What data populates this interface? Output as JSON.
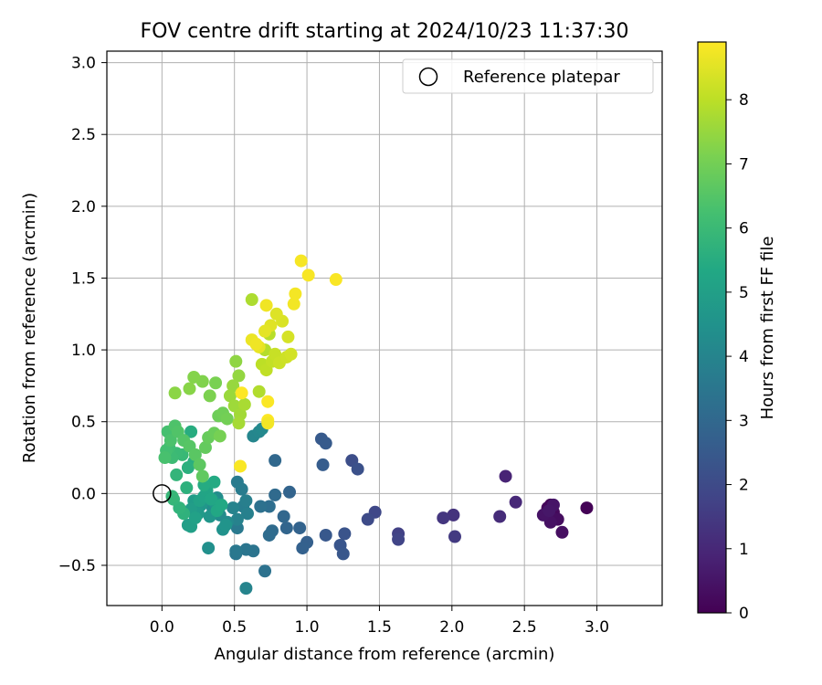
{
  "chart_data": {
    "type": "scatter",
    "title": "FOV centre drift starting at 2024/10/23 11:37:30",
    "xlabel": "Angular distance from reference (arcmin)",
    "ylabel": "Rotation from reference (arcmin)",
    "xlim": [
      -0.38,
      3.45
    ],
    "ylim": [
      -0.78,
      3.08
    ],
    "xticks": [
      "0.0",
      "0.5",
      "1.0",
      "1.5",
      "2.0",
      "2.5",
      "3.0"
    ],
    "xtick_values": [
      0,
      0.5,
      1,
      1.5,
      2,
      2.5,
      3
    ],
    "yticks": [
      "−0.5",
      "0.0",
      "0.5",
      "1.0",
      "1.5",
      "2.0",
      "2.5",
      "3.0"
    ],
    "ytick_values": [
      -0.5,
      0,
      0.5,
      1,
      1.5,
      2,
      2.5,
      3
    ],
    "grid": true,
    "legend": {
      "placement": "top-right",
      "label": "Reference platepar"
    },
    "reference_point": {
      "x": 0.0,
      "y": 0.0
    },
    "colorbar": {
      "label": "Hours from first FF file",
      "colormap": "viridis",
      "range": [
        0,
        8.9
      ],
      "ticks": [
        "0",
        "1",
        "2",
        "3",
        "4",
        "5",
        "6",
        "7",
        "8"
      ],
      "tick_values": [
        0,
        1,
        2,
        3,
        4,
        5,
        6,
        7,
        8
      ]
    },
    "points": [
      [
        2.93,
        -0.1,
        0.05
      ],
      [
        2.68,
        -0.08,
        0.1
      ],
      [
        2.66,
        -0.1,
        0.15
      ],
      [
        2.7,
        -0.13,
        0.2
      ],
      [
        2.65,
        -0.15,
        0.25
      ],
      [
        2.73,
        -0.18,
        0.3
      ],
      [
        2.76,
        -0.27,
        0.35
      ],
      [
        2.68,
        -0.2,
        0.4
      ],
      [
        2.63,
        -0.15,
        0.45
      ],
      [
        2.7,
        -0.08,
        0.5
      ],
      [
        2.67,
        -0.12,
        0.55
      ],
      [
        2.37,
        0.12,
        0.9
      ],
      [
        2.44,
        -0.06,
        1.0
      ],
      [
        2.33,
        -0.16,
        1.1
      ],
      [
        2.01,
        -0.15,
        1.3
      ],
      [
        1.94,
        -0.17,
        1.4
      ],
      [
        2.02,
        -0.3,
        1.5
      ],
      [
        1.63,
        -0.28,
        1.7
      ],
      [
        1.63,
        -0.32,
        1.8
      ],
      [
        1.47,
        -0.13,
        1.9
      ],
      [
        1.42,
        -0.18,
        2.0
      ],
      [
        1.31,
        0.23,
        2.1
      ],
      [
        1.35,
        0.17,
        2.2
      ],
      [
        1.26,
        -0.28,
        2.3
      ],
      [
        1.23,
        -0.36,
        2.35
      ],
      [
        1.25,
        -0.42,
        2.4
      ],
      [
        1.13,
        -0.29,
        2.45
      ],
      [
        1.1,
        0.38,
        2.5
      ],
      [
        1.13,
        0.35,
        2.55
      ],
      [
        1.11,
        0.2,
        2.6
      ],
      [
        1.0,
        -0.34,
        2.7
      ],
      [
        0.97,
        -0.38,
        2.75
      ],
      [
        0.95,
        -0.24,
        2.8
      ],
      [
        0.88,
        0.01,
        2.85
      ],
      [
        0.86,
        -0.24,
        2.9
      ],
      [
        0.84,
        -0.16,
        2.95
      ],
      [
        0.78,
        0.23,
        3.0
      ],
      [
        0.78,
        -0.01,
        3.05
      ],
      [
        0.76,
        -0.26,
        3.1
      ],
      [
        0.74,
        -0.29,
        3.15
      ],
      [
        0.74,
        -0.09,
        3.2
      ],
      [
        0.68,
        -0.09,
        3.3
      ],
      [
        0.71,
        -0.54,
        3.35
      ],
      [
        0.63,
        -0.4,
        3.4
      ],
      [
        0.58,
        -0.39,
        3.45
      ],
      [
        0.51,
        -0.42,
        3.5
      ],
      [
        0.51,
        -0.4,
        3.55
      ],
      [
        0.52,
        -0.24,
        3.6
      ],
      [
        0.52,
        0.08,
        3.65
      ],
      [
        0.55,
        0.03,
        3.7
      ],
      [
        0.56,
        -0.09,
        3.75
      ],
      [
        0.58,
        -0.05,
        3.8
      ],
      [
        0.59,
        -0.14,
        3.85
      ],
      [
        0.52,
        -0.18,
        3.9
      ],
      [
        0.49,
        -0.1,
        3.95
      ],
      [
        0.58,
        -0.66,
        4.0
      ],
      [
        0.63,
        0.4,
        4.05
      ],
      [
        0.67,
        0.43,
        4.1
      ],
      [
        0.69,
        0.45,
        4.15
      ],
      [
        0.45,
        -0.2,
        4.2
      ],
      [
        0.4,
        -0.15,
        4.25
      ],
      [
        0.38,
        -0.03,
        4.3
      ],
      [
        0.35,
        -0.1,
        4.35
      ],
      [
        0.32,
        -0.38,
        4.4
      ],
      [
        0.3,
        -0.02,
        4.45
      ],
      [
        0.42,
        -0.25,
        4.5
      ],
      [
        0.44,
        -0.22,
        4.55
      ],
      [
        0.36,
        -0.06,
        4.6
      ],
      [
        0.33,
        -0.16,
        4.65
      ],
      [
        0.27,
        -0.08,
        4.7
      ],
      [
        0.25,
        -0.14,
        4.8
      ],
      [
        0.22,
        -0.05,
        4.85
      ],
      [
        0.2,
        -0.11,
        4.9
      ],
      [
        0.18,
        -0.22,
        4.95
      ],
      [
        0.2,
        -0.23,
        5.0
      ],
      [
        0.23,
        -0.17,
        5.05
      ],
      [
        0.26,
        -0.05,
        5.1
      ],
      [
        0.29,
        -0.02,
        5.15
      ],
      [
        0.31,
        0.02,
        5.2
      ],
      [
        0.34,
        -0.04,
        5.25
      ],
      [
        0.38,
        -0.12,
        5.3
      ],
      [
        0.41,
        -0.08,
        5.35
      ],
      [
        0.36,
        0.08,
        5.4
      ],
      [
        0.29,
        0.06,
        5.45
      ],
      [
        0.2,
        0.43,
        5.5
      ],
      [
        0.22,
        0.22,
        5.55
      ],
      [
        0.18,
        0.18,
        5.6
      ],
      [
        0.17,
        0.04,
        5.65
      ],
      [
        0.15,
        -0.14,
        5.7
      ],
      [
        0.12,
        -0.1,
        5.75
      ],
      [
        0.1,
        0.13,
        5.8
      ],
      [
        0.08,
        -0.04,
        5.85
      ],
      [
        0.07,
        -0.02,
        5.9
      ],
      [
        0.14,
        0.27,
        5.95
      ],
      [
        0.1,
        0.28,
        6.0
      ],
      [
        0.07,
        0.25,
        6.05
      ],
      [
        0.05,
        0.32,
        6.1
      ],
      [
        0.03,
        0.3,
        6.2
      ],
      [
        0.04,
        0.43,
        6.25
      ],
      [
        0.02,
        0.25,
        6.3
      ],
      [
        0.06,
        0.37,
        6.35
      ],
      [
        0.09,
        0.47,
        6.4
      ],
      [
        0.11,
        0.43,
        6.45
      ],
      [
        0.15,
        0.37,
        6.5
      ],
      [
        0.19,
        0.33,
        6.55
      ],
      [
        0.23,
        0.27,
        6.6
      ],
      [
        0.26,
        0.2,
        6.65
      ],
      [
        0.28,
        0.12,
        6.7
      ],
      [
        0.3,
        0.32,
        6.75
      ],
      [
        0.32,
        0.39,
        6.8
      ],
      [
        0.36,
        0.42,
        6.85
      ],
      [
        0.39,
        0.54,
        6.9
      ],
      [
        0.42,
        0.56,
        6.95
      ],
      [
        0.45,
        0.52,
        7.0
      ],
      [
        0.4,
        0.4,
        7.05
      ],
      [
        0.37,
        0.77,
        7.1
      ],
      [
        0.33,
        0.68,
        7.15
      ],
      [
        0.28,
        0.78,
        7.2
      ],
      [
        0.22,
        0.81,
        7.25
      ],
      [
        0.19,
        0.73,
        7.3
      ],
      [
        0.09,
        0.7,
        7.35
      ],
      [
        0.51,
        0.92,
        7.4
      ],
      [
        0.53,
        0.82,
        7.45
      ],
      [
        0.49,
        0.75,
        7.5
      ],
      [
        0.47,
        0.68,
        7.55
      ],
      [
        0.5,
        0.61,
        7.6
      ],
      [
        0.54,
        0.55,
        7.65
      ],
      [
        0.53,
        0.49,
        7.7
      ],
      [
        0.57,
        0.62,
        7.75
      ],
      [
        0.62,
        1.35,
        7.8
      ],
      [
        0.67,
        0.71,
        7.85
      ],
      [
        0.71,
        1.0,
        7.9
      ],
      [
        0.74,
        1.11,
        7.95
      ],
      [
        0.69,
        0.9,
        8.0
      ],
      [
        0.72,
        0.86,
        8.05
      ],
      [
        0.76,
        0.92,
        8.1
      ],
      [
        0.78,
        0.97,
        8.15
      ],
      [
        0.81,
        0.91,
        8.2
      ],
      [
        0.86,
        0.95,
        8.25
      ],
      [
        0.89,
        0.97,
        8.3
      ],
      [
        0.87,
        1.09,
        8.35
      ],
      [
        0.83,
        1.2,
        8.4
      ],
      [
        0.79,
        1.25,
        8.45
      ],
      [
        0.75,
        1.17,
        8.5
      ],
      [
        0.71,
        1.13,
        8.55
      ],
      [
        0.67,
        1.02,
        8.6
      ],
      [
        0.62,
        1.07,
        8.65
      ],
      [
        0.65,
        1.04,
        8.7
      ],
      [
        0.72,
        1.31,
        8.72
      ],
      [
        0.91,
        1.32,
        8.75
      ],
      [
        0.92,
        1.39,
        8.78
      ],
      [
        0.96,
        1.62,
        8.8
      ],
      [
        1.01,
        1.52,
        8.82
      ],
      [
        1.2,
        1.49,
        8.84
      ],
      [
        0.73,
        0.64,
        8.86
      ],
      [
        0.73,
        0.51,
        8.88
      ],
      [
        0.55,
        0.7,
        8.9
      ],
      [
        0.54,
        0.19,
        8.85
      ],
      [
        0.73,
        0.49,
        8.75
      ]
    ]
  }
}
